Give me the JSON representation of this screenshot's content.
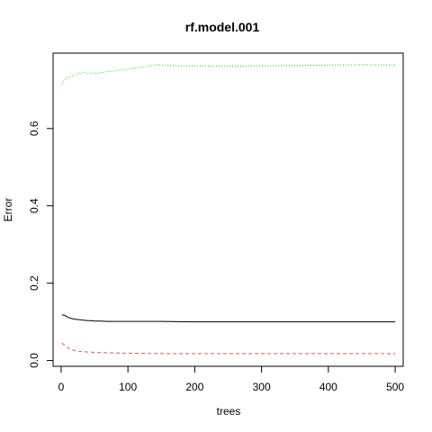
{
  "chart_data": {
    "type": "line",
    "title": "rf.model.001",
    "xlabel": "trees",
    "ylabel": "Error",
    "xlim": [
      -12,
      512
    ],
    "ylim": [
      -0.015,
      0.795
    ],
    "xticks": [
      0,
      100,
      200,
      300,
      400,
      500
    ],
    "yticks": [
      0.0,
      0.2,
      0.4,
      0.6
    ],
    "xtick_labels": [
      "0",
      "100",
      "200",
      "300",
      "400",
      "500"
    ],
    "ytick_labels": [
      "0.0",
      "0.2",
      "0.4",
      "0.6"
    ],
    "grid": false,
    "series": [
      {
        "color": "#000000",
        "dash": "",
        "points": [
          [
            1,
            0.118
          ],
          [
            5,
            0.117
          ],
          [
            10,
            0.112
          ],
          [
            15,
            0.109
          ],
          [
            20,
            0.107
          ],
          [
            25,
            0.106
          ],
          [
            30,
            0.105
          ],
          [
            35,
            0.104
          ],
          [
            40,
            0.103
          ],
          [
            45,
            0.103
          ],
          [
            50,
            0.102
          ],
          [
            60,
            0.102
          ],
          [
            70,
            0.101
          ],
          [
            80,
            0.101
          ],
          [
            100,
            0.101
          ],
          [
            150,
            0.101
          ],
          [
            200,
            0.1
          ],
          [
            300,
            0.1
          ],
          [
            400,
            0.1
          ],
          [
            500,
            0.1
          ]
        ]
      },
      {
        "color": "#df536b",
        "dash": "4,3",
        "points": [
          [
            1,
            0.045
          ],
          [
            5,
            0.04
          ],
          [
            10,
            0.033
          ],
          [
            15,
            0.028
          ],
          [
            20,
            0.026
          ],
          [
            25,
            0.024
          ],
          [
            30,
            0.023
          ],
          [
            40,
            0.022
          ],
          [
            50,
            0.021
          ],
          [
            70,
            0.02
          ],
          [
            100,
            0.019
          ],
          [
            150,
            0.018
          ],
          [
            200,
            0.018
          ],
          [
            300,
            0.018
          ],
          [
            400,
            0.018
          ],
          [
            500,
            0.018
          ]
        ]
      },
      {
        "color": "#22cc22",
        "dash": "1,2",
        "points": [
          [
            1,
            0.715
          ],
          [
            5,
            0.725
          ],
          [
            10,
            0.732
          ],
          [
            15,
            0.735
          ],
          [
            20,
            0.739
          ],
          [
            25,
            0.742
          ],
          [
            30,
            0.744
          ],
          [
            35,
            0.745
          ],
          [
            40,
            0.742
          ],
          [
            45,
            0.744
          ],
          [
            50,
            0.741
          ],
          [
            60,
            0.745
          ],
          [
            70,
            0.747
          ],
          [
            80,
            0.749
          ],
          [
            90,
            0.751
          ],
          [
            100,
            0.753
          ],
          [
            110,
            0.756
          ],
          [
            120,
            0.758
          ],
          [
            130,
            0.761
          ],
          [
            140,
            0.764
          ],
          [
            150,
            0.765
          ],
          [
            160,
            0.763
          ],
          [
            180,
            0.762
          ],
          [
            200,
            0.762
          ],
          [
            250,
            0.761
          ],
          [
            300,
            0.762
          ],
          [
            350,
            0.763
          ],
          [
            400,
            0.764
          ],
          [
            450,
            0.765
          ],
          [
            500,
            0.764
          ]
        ]
      }
    ]
  }
}
